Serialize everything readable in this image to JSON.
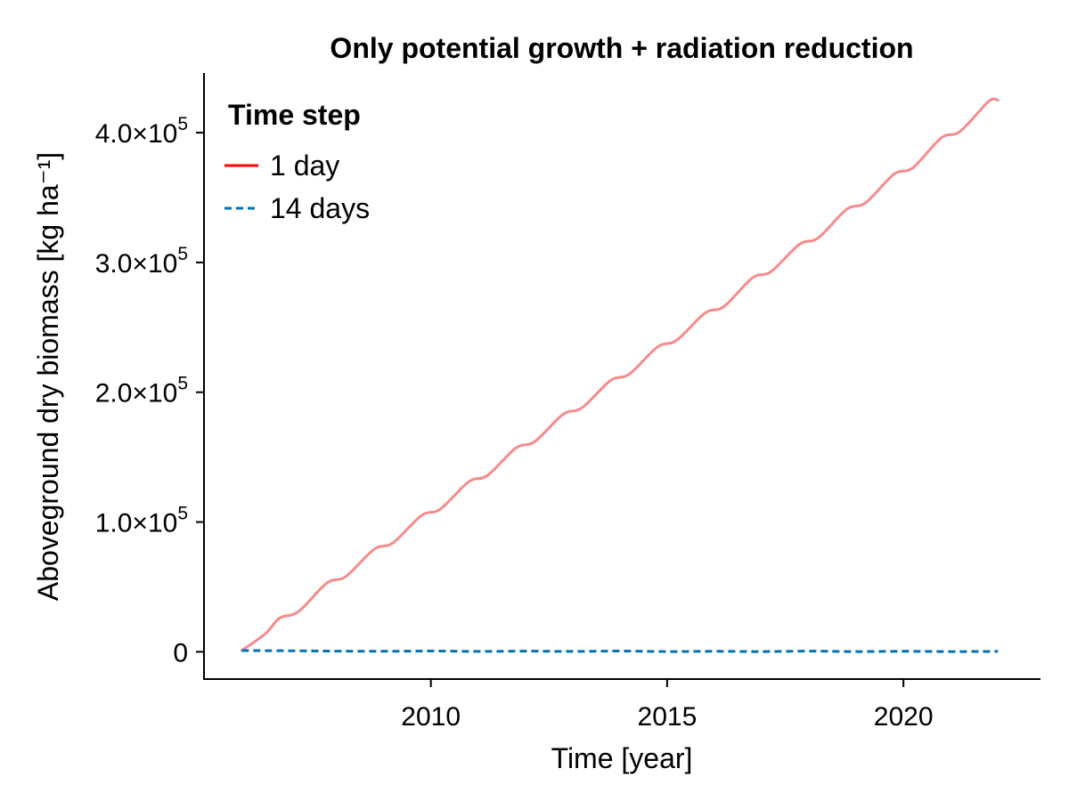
{
  "chart_data": {
    "type": "line",
    "title": "Only potential growth + radiation reduction",
    "xlabel": "Time [year]",
    "ylabel": "Aboveground dry biomass [kg ha⁻¹]",
    "xlim": [
      2005.2,
      2022.9
    ],
    "ylim": [
      -21000,
      446000
    ],
    "x_ticks": [
      2010,
      2015,
      2020
    ],
    "x_tick_labels": [
      "2010",
      "2015",
      "2020"
    ],
    "y_ticks": [
      0,
      100000,
      200000,
      300000,
      400000
    ],
    "y_tick_labels": [
      {
        "mantissa": "0",
        "exp": ""
      },
      {
        "mantissa": "1.0×10",
        "exp": "5"
      },
      {
        "mantissa": "2.0×10",
        "exp": "5"
      },
      {
        "mantissa": "3.0×10",
        "exp": "5"
      },
      {
        "mantissa": "4.0×10",
        "exp": "5"
      }
    ],
    "grid": false,
    "legend": {
      "title": "Time step",
      "placement": "top-left"
    },
    "series": [
      {
        "name": "1 day",
        "legend_color": "#ff0000",
        "line_color": "#f88a8a",
        "dash": "solid",
        "x": [
          2006.0,
          2006.5,
          2006.8,
          2007.2,
          2007.8,
          2008.2,
          2008.8,
          2009.2,
          2009.8,
          2010.2,
          2010.8,
          2011.2,
          2011.8,
          2012.2,
          2012.8,
          2013.2,
          2013.8,
          2014.2,
          2014.8,
          2015.2,
          2015.8,
          2016.2,
          2016.8,
          2017.2,
          2017.8,
          2018.2,
          2018.8,
          2019.2,
          2019.8,
          2020.2,
          2020.8,
          2021.2,
          2021.8,
          2022.0
        ],
        "y": [
          1000,
          14000,
          26000,
          31000,
          53000,
          58000,
          79000,
          84000,
          105000,
          110000,
          131000,
          136000,
          157000,
          162000,
          183000,
          188000,
          209000,
          214000,
          235000,
          240000,
          261000,
          266000,
          288000,
          293000,
          314000,
          319000,
          341000,
          346000,
          368000,
          373000,
          396000,
          401000,
          424000,
          425000
        ]
      },
      {
        "name": "14 days",
        "legend_color": "#0072b2",
        "line_color": "#0072b2",
        "dash": "dashed",
        "x": [
          2006.0,
          2007.0,
          2008.0,
          2009.0,
          2010.0,
          2011.0,
          2012.0,
          2013.0,
          2014.0,
          2015.0,
          2016.0,
          2017.0,
          2018.0,
          2019.0,
          2020.0,
          2021.0,
          2022.0
        ],
        "y": [
          1000,
          800,
          500,
          400,
          600,
          300,
          500,
          300,
          600,
          200,
          400,
          200,
          500,
          200,
          400,
          200,
          300
        ]
      }
    ]
  }
}
